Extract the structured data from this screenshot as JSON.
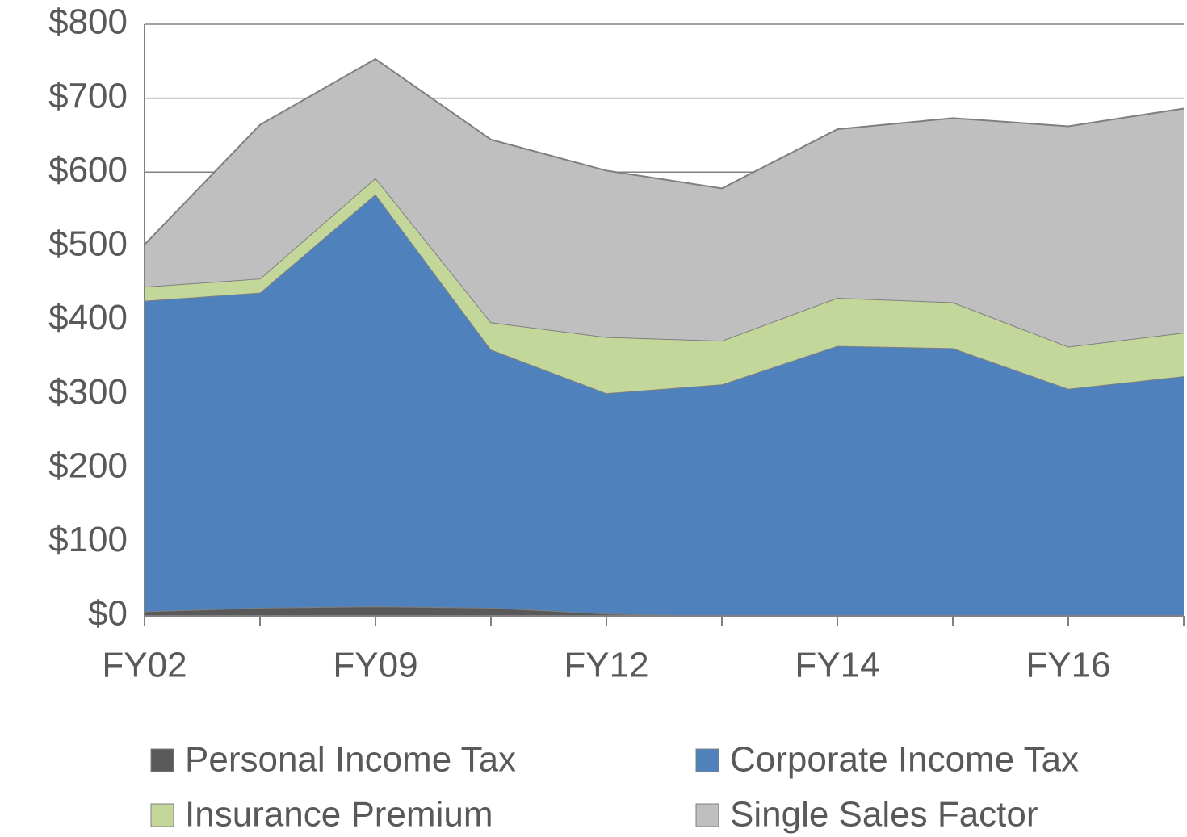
{
  "chart_data": {
    "type": "stacked_area",
    "categories": [
      "FY02",
      null,
      "FY09",
      null,
      "FY12",
      null,
      "FY14",
      null,
      "FY16",
      null
    ],
    "series": [
      {
        "name": "Personal Income Tax",
        "color": "#595959",
        "values": [
          6,
          11,
          13,
          11,
          3,
          0,
          0,
          0,
          0,
          0
        ]
      },
      {
        "name": "Corporate Income Tax",
        "color": "#4f81bd",
        "values": [
          420,
          426,
          557,
          349,
          298,
          313,
          365,
          362,
          307,
          324
        ]
      },
      {
        "name": "Insurance Premium",
        "color": "#c4d79b",
        "values": [
          19,
          19,
          22,
          37,
          76,
          59,
          65,
          62,
          57,
          59
        ]
      },
      {
        "name": "Single Sales Factor",
        "color": "#bfbfbf",
        "values": [
          57,
          208,
          161,
          247,
          225,
          206,
          228,
          249,
          298,
          303
        ]
      }
    ],
    "ylim": [
      0,
      800
    ],
    "yticks": [
      {
        "value": 0,
        "label": "$0"
      },
      {
        "value": 100,
        "label": "$100"
      },
      {
        "value": 200,
        "label": "$200"
      },
      {
        "value": 300,
        "label": "$300"
      },
      {
        "value": 400,
        "label": "$400"
      },
      {
        "value": 500,
        "label": "$500"
      },
      {
        "value": 600,
        "label": "$600"
      },
      {
        "value": 700,
        "label": "$700"
      },
      {
        "value": 800,
        "label": "$800"
      }
    ],
    "grid": true
  }
}
